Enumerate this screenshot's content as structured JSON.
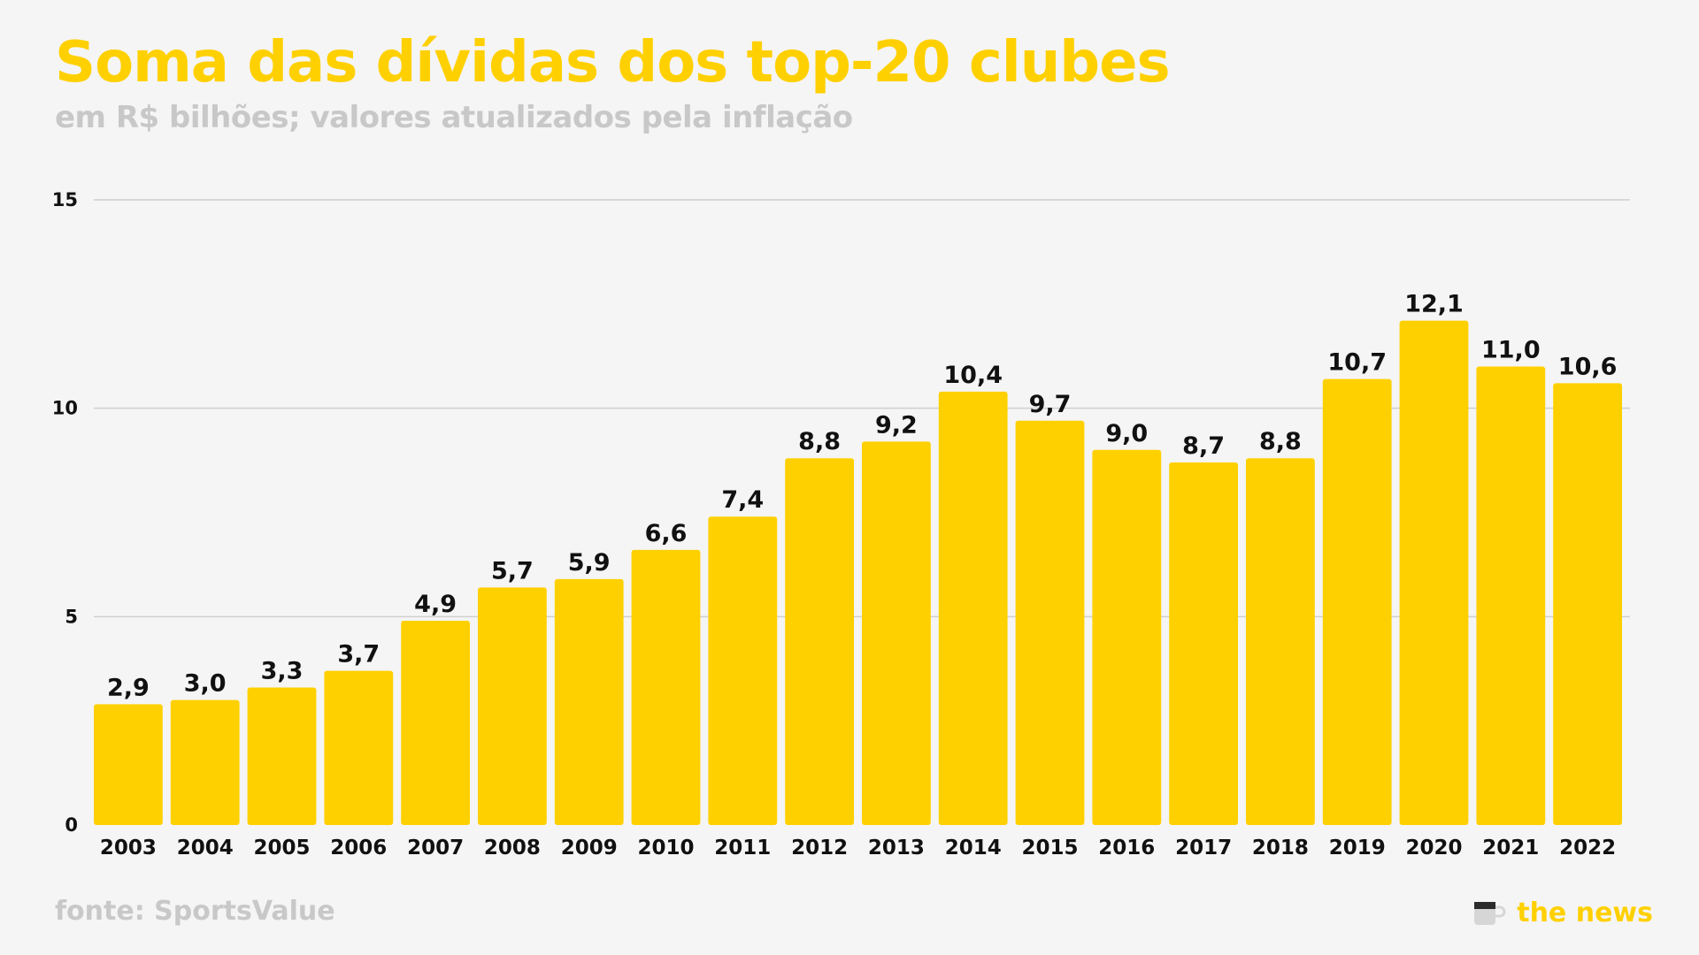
{
  "title": "Soma das dívidas dos top-20 clubes",
  "subtitle": "em R$ bilhões; valores atualizados pela inflação",
  "source": "fonte: SportsValue",
  "brand": {
    "name": "the news",
    "icon": "coffee-mug-icon"
  },
  "colors": {
    "accent": "#FFD000",
    "bar": "#FFD000",
    "subtitle": "#c8c8c8",
    "source": "#c8c8c8",
    "text": "#111111",
    "grid": "#cfcfcf",
    "background": "#f5f5f5"
  },
  "chart_data": {
    "type": "bar",
    "title": "Soma das dívidas dos top-20 clubes",
    "subtitle": "em R$ bilhões; valores atualizados pela inflação",
    "xlabel": "",
    "ylabel": "",
    "categories": [
      "2003",
      "2004",
      "2005",
      "2006",
      "2007",
      "2008",
      "2009",
      "2010",
      "2011",
      "2012",
      "2013",
      "2014",
      "2015",
      "2016",
      "2017",
      "2018",
      "2019",
      "2020",
      "2021",
      "2022"
    ],
    "values": [
      2.9,
      3.0,
      3.3,
      3.7,
      4.9,
      5.7,
      5.9,
      6.6,
      7.4,
      8.8,
      9.2,
      10.4,
      9.7,
      9.0,
      8.7,
      8.8,
      10.7,
      12.1,
      11.0,
      10.6
    ],
    "data_labels": [
      "2,9",
      "3,0",
      "3,3",
      "3,7",
      "4,9",
      "5,7",
      "5,9",
      "6,6",
      "7,4",
      "8,8",
      "9,2",
      "10,4",
      "9,7",
      "9,0",
      "8,7",
      "8,8",
      "10,7",
      "12,1",
      "11,0",
      "10,6"
    ],
    "ylim": [
      0,
      15
    ],
    "yticks": [
      0,
      5,
      10,
      15
    ],
    "ytick_labels": [
      "0",
      "5",
      "10",
      "15"
    ],
    "grid": true
  }
}
